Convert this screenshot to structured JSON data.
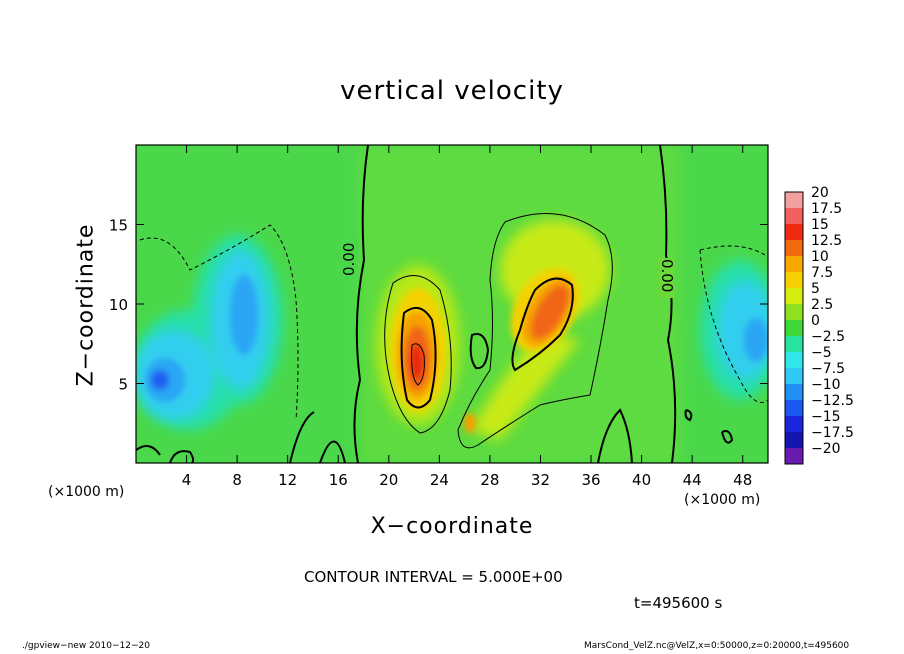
{
  "chart_data": {
    "type": "heatmap",
    "title": "vertical velocity",
    "xlabel": "X−coordinate",
    "ylabel": "Z−coordinate",
    "x_unit": "(×1000 m)",
    "xlim": [
      0,
      50
    ],
    "ylim": [
      0,
      20
    ],
    "x_ticks": [
      4,
      8,
      12,
      16,
      20,
      24,
      28,
      32,
      36,
      40,
      44,
      48
    ],
    "y_ticks": [
      5,
      10,
      15
    ],
    "colorbar": {
      "levels": [
        "20",
        "17.5",
        "15",
        "12.5",
        "10",
        "7.5",
        "5",
        "2.5",
        "0",
        "−2.5",
        "−5",
        "−7.5",
        "−10",
        "−12.5",
        "−15",
        "−17.5",
        "−20"
      ],
      "colors": [
        "#f5a0a0",
        "#f06060",
        "#ee2a10",
        "#f26a10",
        "#f9a800",
        "#f6d000",
        "#d5ee10",
        "#90e020",
        "#3ed838",
        "#28e2a0",
        "#30e6e6",
        "#30c8f4",
        "#2090f4",
        "#1a58f0",
        "#1a26dc",
        "#1414b0",
        "#6a1ab0"
      ]
    },
    "features": [
      {
        "kind": "updraft",
        "x": 22,
        "z": 6.5,
        "value_peak": 15
      },
      {
        "kind": "updraft",
        "x": 32.5,
        "z": 8.5,
        "value_peak": 12.5
      },
      {
        "kind": "downdraft",
        "x": 3,
        "z": 5,
        "value_peak": -10
      },
      {
        "kind": "downdraft",
        "x": 9,
        "z": 10,
        "value_peak": -7.5
      },
      {
        "kind": "downdraft",
        "x": 48,
        "z": 9,
        "value_peak": -10
      }
    ],
    "contour_labels": [
      "0.00",
      "0.00"
    ],
    "contour_interval": "CONTOUR INTERVAL = 5.000E+00",
    "time": "t=495600  s"
  },
  "footer": {
    "left": "./gpview−new   2010−12−20",
    "right": "MarsCond_VelZ.nc@VelZ,x=0:50000,z=0:20000,t=495600"
  }
}
